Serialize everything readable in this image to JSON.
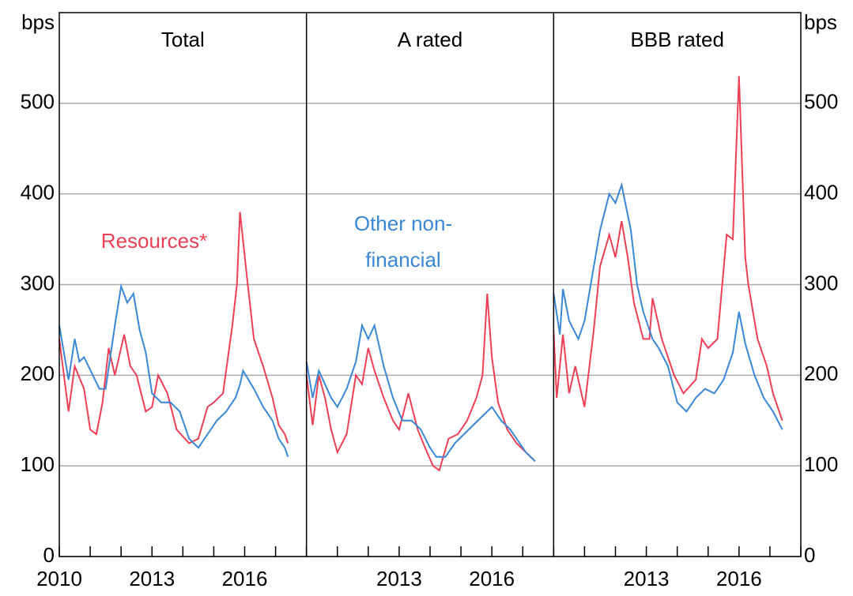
{
  "chart_data": [
    {
      "type": "line",
      "title": "Total",
      "ylabel": "bps",
      "xlim": [
        2010,
        2018
      ],
      "xticks": [
        2010,
        2013,
        2016
      ],
      "xminorticks": [
        2010,
        2011,
        2012,
        2013,
        2014,
        2015,
        2016,
        2017,
        2018
      ],
      "ylim": [
        0,
        600
      ],
      "yticks": [
        0,
        100,
        200,
        300,
        400,
        500
      ],
      "grid": true,
      "series": [
        {
          "name": "Resources*",
          "color": "#ee4055",
          "x": [
            2010,
            2010.3,
            2010.5,
            2010.8,
            2011.0,
            2011.2,
            2011.4,
            2011.6,
            2011.8,
            2012.1,
            2012.3,
            2012.5,
            2012.8,
            2013.0,
            2013.2,
            2013.5,
            2013.8,
            2014.2,
            2014.5,
            2014.8,
            2015.0,
            2015.3,
            2015.6,
            2015.75,
            2015.85,
            2016.1,
            2016.3,
            2016.6,
            2016.9,
            2017.1,
            2017.3,
            2017.4
          ],
          "values": [
            240,
            160,
            210,
            185,
            140,
            135,
            170,
            230,
            200,
            245,
            210,
            200,
            160,
            165,
            200,
            180,
            140,
            125,
            130,
            165,
            170,
            180,
            255,
            300,
            380,
            300,
            240,
            210,
            175,
            145,
            135,
            125
          ]
        },
        {
          "name": "Other non-financial",
          "color": "#3a87d6",
          "x": [
            2010,
            2010.3,
            2010.5,
            2010.65,
            2010.8,
            2011.3,
            2011.5,
            2011.8,
            2012.0,
            2012.2,
            2012.4,
            2012.6,
            2012.8,
            2013.0,
            2013.3,
            2013.6,
            2013.9,
            2014.2,
            2014.5,
            2014.8,
            2015.1,
            2015.4,
            2015.7,
            2015.85,
            2015.95,
            2016.3,
            2016.6,
            2016.9,
            2017.1,
            2017.3,
            2017.4
          ],
          "values": [
            255,
            195,
            240,
            215,
            220,
            185,
            185,
            255,
            298,
            280,
            290,
            250,
            225,
            180,
            170,
            170,
            160,
            130,
            120,
            135,
            150,
            160,
            175,
            190,
            205,
            185,
            165,
            150,
            130,
            120,
            110
          ]
        }
      ]
    },
    {
      "type": "line",
      "title": "A rated",
      "xlim": [
        2010,
        2018
      ],
      "xticks": [
        2013,
        2016
      ],
      "xminorticks": [
        2010,
        2011,
        2012,
        2013,
        2014,
        2015,
        2016,
        2017,
        2018
      ],
      "ylim": [
        0,
        600
      ],
      "series": [
        {
          "name": "Resources*",
          "color": "#ee4055",
          "x": [
            2010,
            2010.2,
            2010.4,
            2010.6,
            2010.8,
            2011.0,
            2011.3,
            2011.6,
            2011.8,
            2012.0,
            2012.2,
            2012.5,
            2012.8,
            2013.0,
            2013.3,
            2013.6,
            2013.9,
            2014.1,
            2014.3,
            2014.6,
            2014.9,
            2015.2,
            2015.5,
            2015.7,
            2015.85,
            2016.0,
            2016.2,
            2016.5,
            2016.8,
            2017.1,
            2017.4
          ],
          "values": [
            200,
            145,
            200,
            175,
            140,
            115,
            135,
            200,
            190,
            230,
            205,
            175,
            150,
            140,
            180,
            140,
            115,
            100,
            95,
            130,
            135,
            150,
            175,
            200,
            290,
            220,
            170,
            140,
            125,
            115,
            105
          ]
        },
        {
          "name": "Other non-financial",
          "color": "#3a87d6",
          "x": [
            2010,
            2010.2,
            2010.4,
            2010.6,
            2010.8,
            2011.0,
            2011.3,
            2011.6,
            2011.8,
            2012.0,
            2012.2,
            2012.5,
            2012.8,
            2013.1,
            2013.4,
            2013.7,
            2014.0,
            2014.2,
            2014.5,
            2014.8,
            2015.1,
            2015.4,
            2015.7,
            2016.0,
            2016.3,
            2016.6,
            2016.9,
            2017.1,
            2017.4
          ],
          "values": [
            215,
            175,
            205,
            190,
            175,
            165,
            185,
            215,
            255,
            240,
            255,
            210,
            175,
            150,
            150,
            140,
            120,
            110,
            110,
            125,
            135,
            145,
            155,
            165,
            150,
            140,
            125,
            115,
            105
          ]
        }
      ]
    },
    {
      "type": "line",
      "title": "BBB rated",
      "y2label": "bps",
      "xlim": [
        2010,
        2018
      ],
      "xticks": [
        2013,
        2016
      ],
      "xminorticks": [
        2010,
        2011,
        2012,
        2013,
        2014,
        2015,
        2016,
        2017,
        2018
      ],
      "ylim": [
        0,
        600
      ],
      "y2lim": [
        0,
        600
      ],
      "y2ticks": [
        0,
        100,
        200,
        300,
        400,
        500
      ],
      "series": [
        {
          "name": "Resources*",
          "color": "#ee4055",
          "x": [
            2010,
            2010.1,
            2010.3,
            2010.5,
            2010.7,
            2011.0,
            2011.3,
            2011.5,
            2011.8,
            2012.0,
            2012.2,
            2012.4,
            2012.6,
            2012.9,
            2013.1,
            2013.2,
            2013.5,
            2013.9,
            2014.2,
            2014.6,
            2014.8,
            2015.0,
            2015.3,
            2015.6,
            2015.8,
            2016.0,
            2016.2,
            2016.3,
            2016.6,
            2016.9,
            2017.1,
            2017.4
          ],
          "values": [
            250,
            175,
            245,
            180,
            210,
            165,
            250,
            320,
            355,
            330,
            370,
            330,
            280,
            240,
            240,
            285,
            240,
            200,
            180,
            195,
            240,
            230,
            240,
            355,
            350,
            530,
            330,
            300,
            240,
            210,
            180,
            150
          ]
        },
        {
          "name": "Other non-financial",
          "color": "#3a87d6",
          "x": [
            2010,
            2010.2,
            2010.3,
            2010.5,
            2010.8,
            2011.0,
            2011.2,
            2011.5,
            2011.8,
            2012.0,
            2012.2,
            2012.5,
            2012.7,
            2012.9,
            2013.2,
            2013.4,
            2013.7,
            2014.0,
            2014.3,
            2014.6,
            2014.9,
            2015.2,
            2015.5,
            2015.8,
            2016.0,
            2016.2,
            2016.5,
            2016.8,
            2017.1,
            2017.4
          ],
          "values": [
            290,
            245,
            295,
            260,
            240,
            260,
            300,
            360,
            400,
            390,
            410,
            360,
            300,
            270,
            240,
            230,
            210,
            170,
            160,
            175,
            185,
            180,
            195,
            225,
            270,
            235,
            200,
            175,
            160,
            140
          ]
        }
      ]
    }
  ]
}
